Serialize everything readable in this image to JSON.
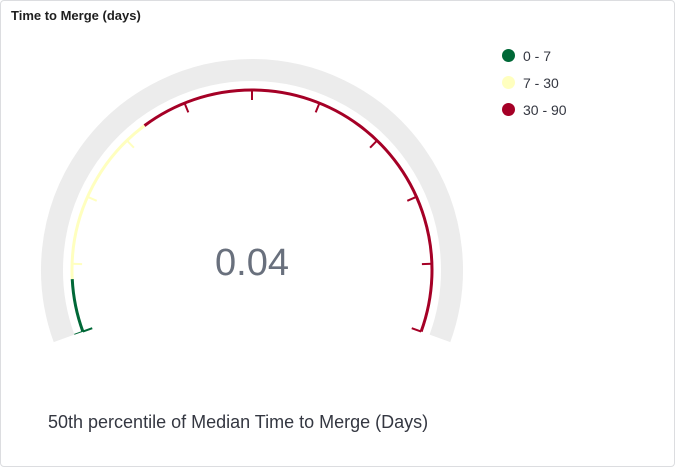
{
  "panel": {
    "title": "Time to Merge (days)"
  },
  "chart_data": {
    "type": "gauge",
    "value": 0.04,
    "value_label": "0.04",
    "range": [
      0,
      90
    ],
    "bands": [
      {
        "label": "0 - 7",
        "from": 0,
        "to": 7,
        "color": "#006837"
      },
      {
        "label": "7 - 30",
        "from": 7,
        "to": 30,
        "color": "#ffffbf"
      },
      {
        "label": "30 - 90",
        "from": 30,
        "to": 90,
        "color": "#a50026"
      }
    ],
    "caption": "50th percentile of Median Time to Merge (Days)",
    "legend_position": "top-right",
    "track_color": "#ececec"
  }
}
